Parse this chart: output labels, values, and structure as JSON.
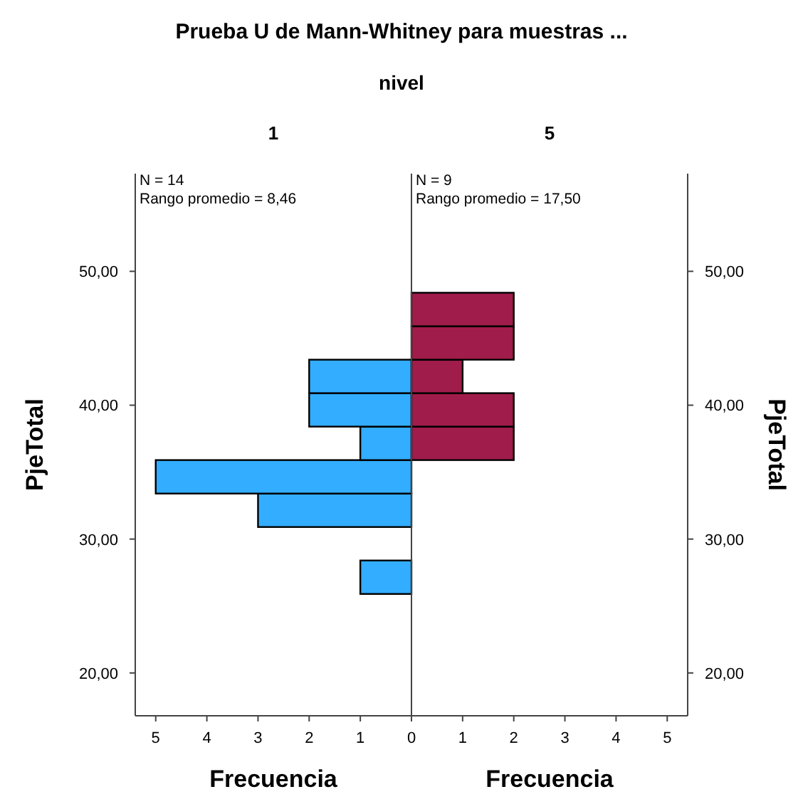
{
  "chart_data": [
    {
      "type": "histogram",
      "orientation": "horizontal",
      "title": "Prueba U de Mann-Whitney para muestras ...",
      "subtitle": "nivel",
      "xlabel": "Frecuencia",
      "ylabel": "PjeTotal",
      "annotations": [
        "1",
        "N = 14",
        "Rango promedio = 8,46"
      ],
      "bins": [
        25.9,
        28.4,
        30.9,
        33.4,
        35.9,
        38.4,
        40.9,
        43.4,
        45.9,
        48.4
      ],
      "values": [
        1,
        0,
        3,
        5,
        1,
        2,
        2,
        0,
        0
      ],
      "color": "#33adff",
      "xlim": [
        5.4,
        0
      ],
      "xticks": [
        5,
        4,
        3,
        2,
        1,
        0
      ],
      "ylim": [
        16.8,
        57.3
      ],
      "yticks": [
        {
          "value": 20,
          "label": "20,00"
        },
        {
          "value": 30,
          "label": "30,00"
        },
        {
          "value": 40,
          "label": "40,00"
        },
        {
          "value": 50,
          "label": "50,00"
        }
      ],
      "grid": false
    },
    {
      "type": "histogram",
      "orientation": "horizontal",
      "xlabel": "Frecuencia",
      "ylabel": "PjeTotal",
      "annotations": [
        "5",
        "N = 9",
        "Rango promedio = 17,50"
      ],
      "bins": [
        25.9,
        28.4,
        30.9,
        33.4,
        35.9,
        38.4,
        40.9,
        43.4,
        45.9,
        48.4
      ],
      "values": [
        0,
        0,
        0,
        0,
        2,
        2,
        1,
        2,
        2
      ],
      "color": "#a01c4a",
      "xlim": [
        0,
        5.4
      ],
      "xticks": [
        1,
        2,
        3,
        4,
        5
      ],
      "ylim": [
        16.8,
        57.3
      ],
      "yticks": [
        {
          "value": 20,
          "label": "20,00"
        },
        {
          "value": 30,
          "label": "30,00"
        },
        {
          "value": 40,
          "label": "40,00"
        },
        {
          "value": 50,
          "label": "50,00"
        }
      ],
      "grid": false
    }
  ]
}
